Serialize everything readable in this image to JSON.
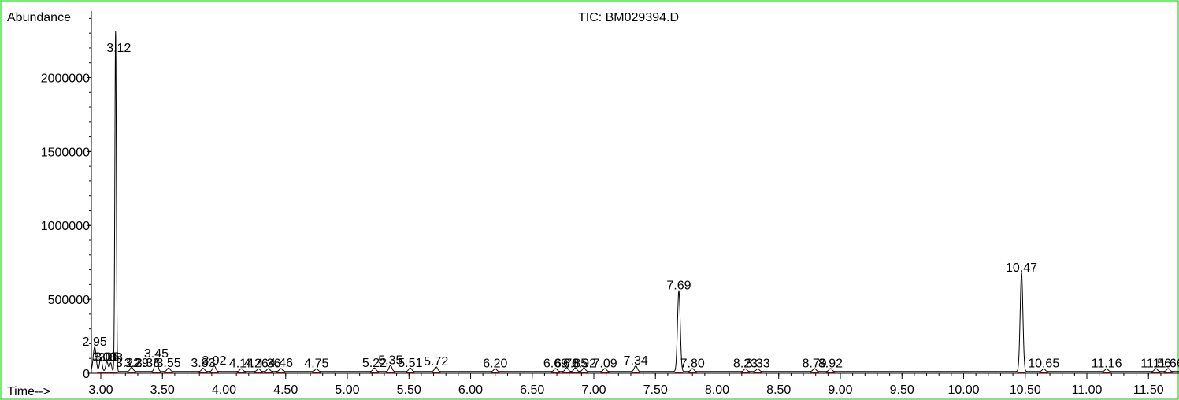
{
  "chart_data": {
    "type": "line",
    "title": "TIC: BM029394.D",
    "xlabel": "Time-->",
    "ylabel": "Abundance",
    "xlim": [
      2.87,
      11.77
    ],
    "ylim": [
      0,
      2450000
    ],
    "grid": false,
    "x_ticks": [
      {
        "value": 3.0,
        "label": "3.00"
      },
      {
        "value": 3.5,
        "label": "3.50"
      },
      {
        "value": 4.0,
        "label": "4.00"
      },
      {
        "value": 4.5,
        "label": "4.50"
      },
      {
        "value": 5.0,
        "label": "5.00"
      },
      {
        "value": 5.5,
        "label": "5.50"
      },
      {
        "value": 6.0,
        "label": "6.00"
      },
      {
        "value": 6.5,
        "label": "6.50"
      },
      {
        "value": 7.0,
        "label": "7.00"
      },
      {
        "value": 7.5,
        "label": "7.50"
      },
      {
        "value": 8.0,
        "label": "8.00"
      },
      {
        "value": 8.5,
        "label": "8.50"
      },
      {
        "value": 9.0,
        "label": "9.00"
      },
      {
        "value": 9.5,
        "label": "9.50"
      },
      {
        "value": 10.0,
        "label": "10.00"
      },
      {
        "value": 10.5,
        "label": "10.50"
      },
      {
        "value": 11.0,
        "label": "11.00"
      },
      {
        "value": 11.5,
        "label": "11.50"
      }
    ],
    "y_ticks": [
      {
        "value": 0,
        "label": "0"
      },
      {
        "value": 500000,
        "label": "500000"
      },
      {
        "value": 1000000,
        "label": "1000000"
      },
      {
        "value": 1500000,
        "label": "1500000"
      },
      {
        "value": 2000000,
        "label": "2000000"
      }
    ],
    "baseline": 12000,
    "peaks": [
      {
        "x": 2.88,
        "y": 460000,
        "w": 0.008
      },
      {
        "x": 2.95,
        "y": 165000,
        "w": 0.012
      },
      {
        "x": 3.0,
        "y": 95000,
        "w": 0.01
      },
      {
        "x": 3.05,
        "y": 65000,
        "w": 0.01
      },
      {
        "x": 3.08,
        "y": 58000,
        "w": 0.008
      },
      {
        "x": 3.12,
        "y": 2300000,
        "w": 0.006
      },
      {
        "x": 3.25,
        "y": 28000,
        "w": 0.012
      },
      {
        "x": 3.45,
        "y": 85000,
        "w": 0.012
      },
      {
        "x": 3.55,
        "y": 24000,
        "w": 0.012
      },
      {
        "x": 3.83,
        "y": 22000,
        "w": 0.012
      },
      {
        "x": 3.92,
        "y": 38000,
        "w": 0.012
      },
      {
        "x": 4.14,
        "y": 19000,
        "w": 0.012
      },
      {
        "x": 4.28,
        "y": 18000,
        "w": 0.012
      },
      {
        "x": 4.36,
        "y": 19000,
        "w": 0.012
      },
      {
        "x": 4.46,
        "y": 20000,
        "w": 0.012
      },
      {
        "x": 4.75,
        "y": 18000,
        "w": 0.012
      },
      {
        "x": 5.22,
        "y": 24000,
        "w": 0.012
      },
      {
        "x": 5.35,
        "y": 40000,
        "w": 0.012
      },
      {
        "x": 5.51,
        "y": 24000,
        "w": 0.012
      },
      {
        "x": 5.72,
        "y": 32000,
        "w": 0.012
      },
      {
        "x": 6.2,
        "y": 18000,
        "w": 0.012
      },
      {
        "x": 6.69,
        "y": 20000,
        "w": 0.012
      },
      {
        "x": 6.78,
        "y": 26000,
        "w": 0.012
      },
      {
        "x": 6.85,
        "y": 24000,
        "w": 0.012
      },
      {
        "x": 6.92,
        "y": 24000,
        "w": 0.012
      },
      {
        "x": 7.09,
        "y": 20000,
        "w": 0.012
      },
      {
        "x": 7.34,
        "y": 38000,
        "w": 0.012
      },
      {
        "x": 7.69,
        "y": 545000,
        "w": 0.011
      },
      {
        "x": 7.8,
        "y": 20000,
        "w": 0.012
      },
      {
        "x": 8.23,
        "y": 18000,
        "w": 0.012
      },
      {
        "x": 8.33,
        "y": 18000,
        "w": 0.012
      },
      {
        "x": 8.79,
        "y": 20000,
        "w": 0.012
      },
      {
        "x": 8.92,
        "y": 20000,
        "w": 0.012
      },
      {
        "x": 10.47,
        "y": 665000,
        "w": 0.011
      },
      {
        "x": 10.65,
        "y": 18000,
        "w": 0.012
      },
      {
        "x": 11.16,
        "y": 18000,
        "w": 0.012
      },
      {
        "x": 11.56,
        "y": 20000,
        "w": 0.012
      },
      {
        "x": 11.66,
        "y": 20000,
        "w": 0.012
      }
    ],
    "peak_labels": [
      {
        "x": 2.95,
        "y": 165000,
        "label": "2.95"
      },
      {
        "x": 3.03,
        "y": 60000,
        "label": "3.03"
      },
      {
        "x": 3.05,
        "y": 60000,
        "label": "3.05"
      },
      {
        "x": 3.08,
        "y": 58000,
        "label": "3.08"
      },
      {
        "x": 3.12,
        "y": 2300000,
        "label": "3.12"
      },
      {
        "x": 3.22,
        "y": 20000,
        "label": "3.22"
      },
      {
        "x": 3.29,
        "y": 20000,
        "label": "3.29"
      },
      {
        "x": 3.38,
        "y": 20000,
        "label": "3.38"
      },
      {
        "x": 3.45,
        "y": 85000,
        "label": "3.45"
      },
      {
        "x": 3.55,
        "y": 20000,
        "label": "3.55"
      },
      {
        "x": 3.83,
        "y": 20000,
        "label": "3.83"
      },
      {
        "x": 3.92,
        "y": 38000,
        "label": "3.92"
      },
      {
        "x": 4.14,
        "y": 19000,
        "label": "4.14"
      },
      {
        "x": 4.26,
        "y": 18000,
        "label": "4.26"
      },
      {
        "x": 4.36,
        "y": 19000,
        "label": "4.36"
      },
      {
        "x": 4.46,
        "y": 20000,
        "label": "4.46"
      },
      {
        "x": 4.75,
        "y": 18000,
        "label": "4.75"
      },
      {
        "x": 5.22,
        "y": 20000,
        "label": "5.22"
      },
      {
        "x": 5.35,
        "y": 40000,
        "label": "5.35"
      },
      {
        "x": 5.51,
        "y": 20000,
        "label": "5.51"
      },
      {
        "x": 5.72,
        "y": 32000,
        "label": "5.72"
      },
      {
        "x": 6.2,
        "y": 18000,
        "label": "6.20"
      },
      {
        "x": 6.69,
        "y": 18000,
        "label": "6.69"
      },
      {
        "x": 6.78,
        "y": 18000,
        "label": "6.78"
      },
      {
        "x": 6.85,
        "y": 18000,
        "label": "6.85"
      },
      {
        "x": 6.92,
        "y": 18000,
        "label": "6.92"
      },
      {
        "x": 7.09,
        "y": 18000,
        "label": "7.09"
      },
      {
        "x": 7.34,
        "y": 38000,
        "label": "7.34"
      },
      {
        "x": 7.69,
        "y": 545000,
        "label": "7.69"
      },
      {
        "x": 7.8,
        "y": 18000,
        "label": "7.80"
      },
      {
        "x": 8.23,
        "y": 18000,
        "label": "8.23"
      },
      {
        "x": 8.33,
        "y": 18000,
        "label": "8.33"
      },
      {
        "x": 8.79,
        "y": 18000,
        "label": "8.79"
      },
      {
        "x": 8.92,
        "y": 18000,
        "label": "8.92"
      },
      {
        "x": 10.47,
        "y": 665000,
        "label": "10.47"
      },
      {
        "x": 10.65,
        "y": 18000,
        "label": "10.65"
      },
      {
        "x": 11.16,
        "y": 18000,
        "label": "11.16"
      },
      {
        "x": 11.56,
        "y": 18000,
        "label": "11.56"
      },
      {
        "x": 11.66,
        "y": 18000,
        "label": "11.66"
      }
    ],
    "colors": {
      "trace": "#000000",
      "integration": "#ff0000",
      "frame": "#00cc00",
      "text": "#000000"
    }
  }
}
